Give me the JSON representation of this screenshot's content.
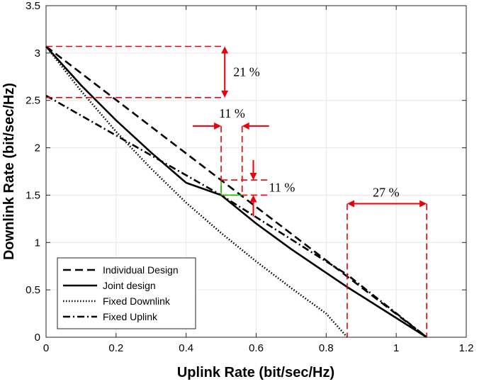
{
  "chart_data": {
    "type": "line",
    "xlabel": "Uplink Rate (bit/sec/Hz)",
    "ylabel": "Downlink Rate (bit/sec/Hz)",
    "xlim": [
      0,
      1.2
    ],
    "ylim": [
      0,
      3.5
    ],
    "xticks": [
      0,
      0.2,
      0.4,
      0.6,
      0.8,
      1,
      1.2
    ],
    "yticks": [
      0,
      0.5,
      1,
      1.5,
      2,
      2.5,
      3,
      3.5
    ],
    "xtick_labels": [
      "0",
      "0.2",
      "0.4",
      "0.6",
      "0.8",
      "1",
      "1.2"
    ],
    "ytick_labels": [
      "0",
      "0.5",
      "1",
      "1.5",
      "2",
      "2.5",
      "3",
      "3.5"
    ],
    "grid": true,
    "legend_position": "bottom-left",
    "series": [
      {
        "name": "Individual Design",
        "style": "dashed",
        "x": [
          0,
          1.087
        ],
        "y": [
          3.07,
          0
        ]
      },
      {
        "name": "Joint design",
        "style": "solid",
        "x": [
          0,
          0.1,
          0.2,
          0.3,
          0.4,
          0.5,
          0.6,
          0.7,
          0.8,
          0.86,
          1.087
        ],
        "y": [
          3.07,
          2.66,
          2.29,
          1.95,
          1.63,
          1.5,
          1.2,
          0.93,
          0.68,
          0.53,
          0
        ]
      },
      {
        "name": "Fixed Downlink",
        "style": "dotted",
        "x": [
          0,
          0.1,
          0.2,
          0.3,
          0.4,
          0.5,
          0.6,
          0.7,
          0.8,
          0.86
        ],
        "y": [
          3.07,
          2.6,
          2.17,
          1.78,
          1.42,
          1.1,
          0.8,
          0.52,
          0.25,
          0
        ]
      },
      {
        "name": "Fixed Uplink",
        "style": "dashdot",
        "x": [
          0,
          0.5,
          0.86,
          1.087
        ],
        "y": [
          2.55,
          1.5,
          0.66,
          0
        ]
      }
    ],
    "annotations": [
      {
        "text": "21 %",
        "kind": "vertical-gap",
        "x": 0.48,
        "y1": 3.07,
        "y2": 2.53
      },
      {
        "text": "11 %",
        "kind": "horizontal-gap",
        "x1": 0.5,
        "x2": 0.56,
        "y": 2.23
      },
      {
        "text": "11 %",
        "kind": "vertical-gap",
        "x": 0.6,
        "y1": 1.66,
        "y2": 1.5
      },
      {
        "text": "27 %",
        "kind": "horizontal-gap",
        "x1": 0.86,
        "x2": 1.087,
        "y": 1.41
      }
    ],
    "colors": {
      "curves": "#000000",
      "annotations": "#e8000b",
      "grid": "#e6e6e6",
      "highlight": "#00cc00"
    }
  }
}
